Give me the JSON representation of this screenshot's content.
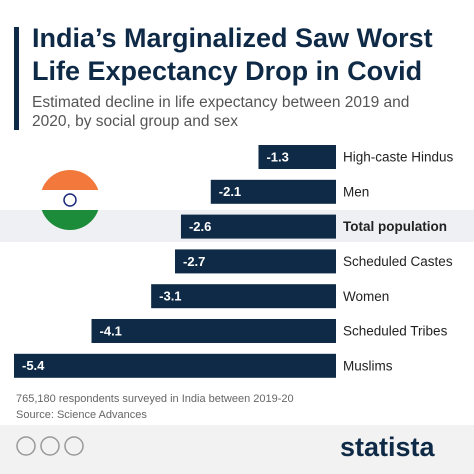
{
  "chart_data": {
    "type": "bar",
    "orientation": "horizontal",
    "title": "India’s Marginalized Saw Worst Life Expectancy Drop in Covid",
    "subtitle": "Estimated decline in life expectancy between 2019 and 2020, by social group and sex",
    "categories": [
      "High-caste Hindus",
      "Men",
      "Total population",
      "Scheduled Castes",
      "Women",
      "Scheduled Tribes",
      "Muslims"
    ],
    "values": [
      -1.3,
      -2.1,
      -2.6,
      -2.7,
      -3.1,
      -4.1,
      -5.4
    ],
    "bold": [
      false,
      false,
      true,
      false,
      false,
      false,
      false
    ],
    "color": "#0f2a46",
    "note": "765,180 respondents surveyed in India between 2019-20",
    "source": "Source: Science Advances",
    "brand": "statista"
  }
}
